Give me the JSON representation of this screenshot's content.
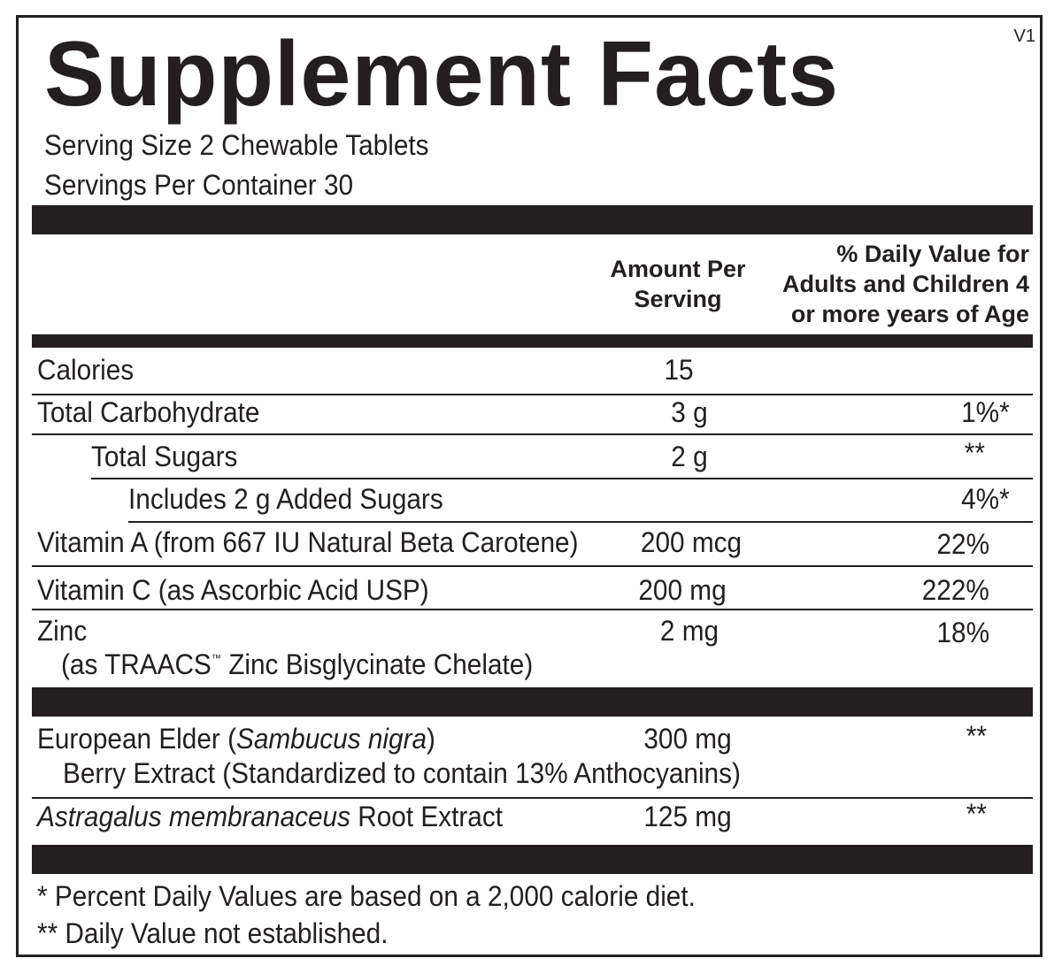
{
  "title": "Supplement Facts",
  "version": "V1",
  "serving_size": "Serving Size 2 Chewable Tablets",
  "servings_per_container": "Servings Per Container 30",
  "header": {
    "amount_line1": "Amount Per",
    "amount_line2": "Serving",
    "dv_line1": "% Daily Value for",
    "dv_line2": "Adults and Children 4",
    "dv_line3": "or more years of Age"
  },
  "rows": [
    {
      "name": "Calories",
      "amount": "15",
      "dv": ""
    },
    {
      "name": "Total Carbohydrate",
      "amount": "3 g",
      "dv": "1%*"
    },
    {
      "name": "Total Sugars",
      "amount": "2 g",
      "dv": "**"
    },
    {
      "name": "Includes 2 g Added Sugars",
      "amount": "",
      "dv": "4%*"
    },
    {
      "name": "Vitamin A (from 667 IU Natural Beta Carotene)",
      "amount": "200 mcg",
      "dv": "22%"
    },
    {
      "name": "Vitamin C (as Ascorbic Acid USP)",
      "amount": "200 mg",
      "dv": "222%"
    },
    {
      "name": "Zinc",
      "name_line2_pre": "(as TRAACS",
      "name_line2_tm": "™",
      "name_line2_post": " Zinc Bisglycinate Chelate)",
      "amount": "2 mg",
      "dv": "18%"
    }
  ],
  "botanicals": [
    {
      "name_pre": "European Elder (",
      "name_italic": "Sambucus nigra",
      "name_post": ")",
      "name_line2": "Berry Extract (Standardized to contain 13% Anthocyanins)",
      "amount": "300 mg",
      "dv": "**"
    },
    {
      "name_italic": "Astragalus membranaceus",
      "name_post": " Root Extract",
      "amount": "125 mg",
      "dv": "**"
    }
  ],
  "footnotes": [
    "* Percent Daily Values are based on a 2,000 calorie diet.",
    "** Daily Value not established."
  ]
}
